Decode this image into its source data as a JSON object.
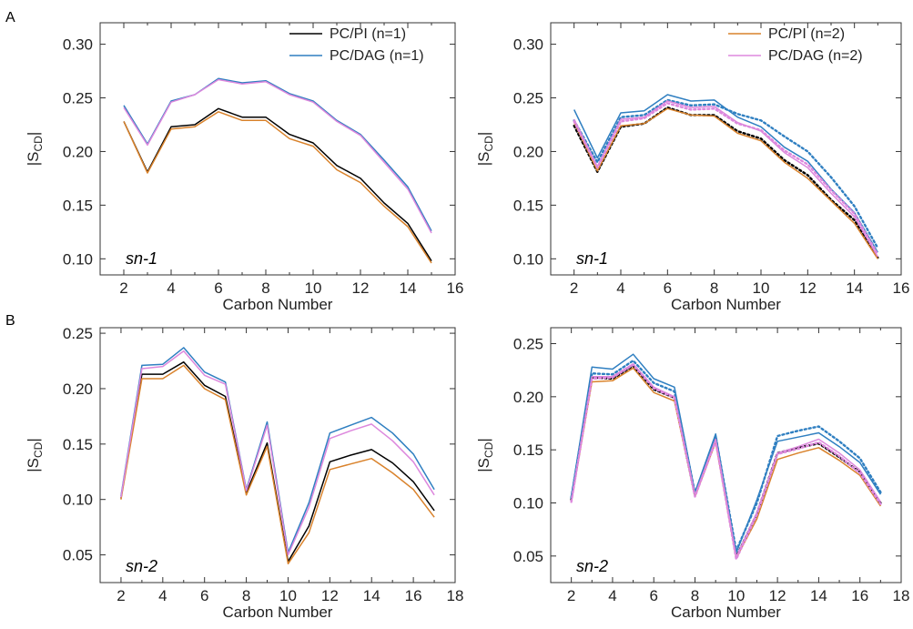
{
  "figure": {
    "panel_labels": [
      "A",
      "B"
    ]
  },
  "colors": {
    "pc_pi_n1": "#000000",
    "pc_dag_n1": "#2f7fc1",
    "pc_pi_n2": "#d9822b",
    "pc_dag_n2": "#dd88dd"
  },
  "chart_data": [
    {
      "type": "line",
      "panel": "A",
      "annotation": "sn-1",
      "xlabel": "Carbon Number",
      "ylabel": "|S",
      "ylabel_sub": "CD",
      "ylabel_end": "|",
      "xlim": [
        1,
        16
      ],
      "ylim": [
        0.085,
        0.32
      ],
      "xticks": [
        2,
        4,
        6,
        8,
        10,
        12,
        14,
        16
      ],
      "yticks": [
        "0.10",
        "0.15",
        "0.20",
        "0.25",
        "0.30"
      ],
      "x": [
        2,
        3,
        4,
        5,
        6,
        7,
        8,
        9,
        10,
        11,
        12,
        13,
        14,
        15
      ],
      "legend_position": "top-right",
      "series": [
        {
          "name": "PC/PI (n=1)",
          "color_key": "pc_pi_n1",
          "dotted": false,
          "values": [
            0.228,
            0.181,
            0.223,
            0.225,
            0.24,
            0.232,
            0.232,
            0.216,
            0.208,
            0.187,
            0.175,
            0.152,
            0.133,
            0.098
          ]
        },
        {
          "name": "PC/DAG (n=1)",
          "color_key": "pc_dag_n1",
          "dotted": false,
          "values": [
            0.243,
            0.207,
            0.247,
            0.253,
            0.268,
            0.264,
            0.266,
            0.254,
            0.247,
            0.229,
            0.216,
            0.192,
            0.167,
            0.126
          ]
        },
        {
          "name": "",
          "color_key": "pc_pi_n2",
          "dotted": false,
          "values": [
            0.228,
            0.18,
            0.221,
            0.223,
            0.237,
            0.229,
            0.229,
            0.212,
            0.205,
            0.183,
            0.171,
            0.149,
            0.13,
            0.096
          ]
        },
        {
          "name": "",
          "color_key": "pc_dag_n2",
          "dotted": false,
          "values": [
            0.241,
            0.206,
            0.246,
            0.253,
            0.267,
            0.263,
            0.265,
            0.253,
            0.246,
            0.228,
            0.215,
            0.19,
            0.165,
            0.124
          ]
        }
      ]
    },
    {
      "type": "line",
      "panel": "A-right",
      "annotation": "sn-1",
      "xlabel": "Carbon Number",
      "ylabel": "|S",
      "ylabel_sub": "CD",
      "ylabel_end": "|",
      "xlim": [
        1,
        16
      ],
      "ylim": [
        0.085,
        0.32
      ],
      "xticks": [
        2,
        4,
        6,
        8,
        10,
        12,
        14,
        16
      ],
      "yticks": [
        "0.10",
        "0.15",
        "0.20",
        "0.25",
        "0.30"
      ],
      "x": [
        2,
        3,
        4,
        5,
        6,
        7,
        8,
        9,
        10,
        11,
        12,
        13,
        14,
        15
      ],
      "legend_position": "top-right",
      "series": [
        {
          "name": "",
          "color_key": "pc_pi_n1",
          "dotted": true,
          "values": [
            0.224,
            0.181,
            0.223,
            0.226,
            0.241,
            0.234,
            0.234,
            0.219,
            0.212,
            0.192,
            0.178,
            0.155,
            0.136,
            0.101
          ]
        },
        {
          "name": "",
          "color_key": "pc_dag_n1",
          "dotted": true,
          "values": [
            0.229,
            0.19,
            0.232,
            0.234,
            0.248,
            0.243,
            0.244,
            0.235,
            0.229,
            0.214,
            0.2,
            0.176,
            0.149,
            0.11
          ]
        },
        {
          "name": "",
          "color_key": "pc_dag_n1",
          "dotted": false,
          "values": [
            0.239,
            0.194,
            0.236,
            0.238,
            0.253,
            0.247,
            0.248,
            0.232,
            0.223,
            0.204,
            0.191,
            0.165,
            0.143,
            0.106
          ]
        },
        {
          "name": "PC/PI (n=2)",
          "color_key": "pc_pi_n2",
          "dotted": false,
          "values": [
            0.227,
            0.182,
            0.224,
            0.226,
            0.24,
            0.234,
            0.233,
            0.217,
            0.21,
            0.19,
            0.175,
            0.154,
            0.133,
            0.1
          ]
        },
        {
          "name": "PC/DAG (n=2)",
          "color_key": "pc_dag_n2",
          "dotted": false,
          "values": [
            0.23,
            0.186,
            0.23,
            0.232,
            0.247,
            0.241,
            0.242,
            0.227,
            0.219,
            0.199,
            0.185,
            0.161,
            0.139,
            0.102
          ]
        },
        {
          "name": "",
          "color_key": "pc_dag_n2",
          "dotted": true,
          "values": [
            0.228,
            0.185,
            0.228,
            0.231,
            0.245,
            0.239,
            0.24,
            0.226,
            0.22,
            0.201,
            0.188,
            0.164,
            0.142,
            0.104
          ]
        }
      ]
    },
    {
      "type": "line",
      "panel": "B",
      "annotation": "sn-2",
      "xlabel": "Carbon Number",
      "ylabel": "|S",
      "ylabel_sub": "CD",
      "ylabel_end": "|",
      "xlim": [
        1,
        18
      ],
      "ylim": [
        0.025,
        0.255
      ],
      "xticks": [
        2,
        4,
        6,
        8,
        10,
        12,
        14,
        16,
        18
      ],
      "yticks": [
        "0.05",
        "0.10",
        "0.15",
        "0.20",
        "0.25"
      ],
      "x": [
        2,
        3,
        4,
        5,
        6,
        7,
        8,
        9,
        10,
        11,
        12,
        13,
        14,
        15,
        16,
        17
      ],
      "legend_position": "none",
      "series": [
        {
          "name": "",
          "color_key": "pc_pi_n1",
          "dotted": false,
          "values": [
            0.101,
            0.213,
            0.213,
            0.224,
            0.203,
            0.193,
            0.106,
            0.151,
            0.044,
            0.076,
            0.134,
            0.14,
            0.145,
            0.133,
            0.116,
            0.09
          ]
        },
        {
          "name": "",
          "color_key": "pc_pi_n2",
          "dotted": false,
          "values": [
            0.1,
            0.209,
            0.209,
            0.221,
            0.2,
            0.19,
            0.104,
            0.148,
            0.042,
            0.07,
            0.127,
            0.132,
            0.137,
            0.124,
            0.109,
            0.084
          ]
        },
        {
          "name": "",
          "color_key": "pc_dag_n1",
          "dotted": false,
          "values": [
            0.103,
            0.221,
            0.222,
            0.237,
            0.215,
            0.206,
            0.109,
            0.17,
            0.052,
            0.097,
            0.16,
            0.167,
            0.174,
            0.16,
            0.141,
            0.109
          ]
        },
        {
          "name": "",
          "color_key": "pc_dag_n2",
          "dotted": false,
          "values": [
            0.102,
            0.218,
            0.22,
            0.234,
            0.212,
            0.204,
            0.108,
            0.167,
            0.05,
            0.093,
            0.155,
            0.162,
            0.168,
            0.153,
            0.134,
            0.104
          ]
        }
      ]
    },
    {
      "type": "line",
      "panel": "B-right",
      "annotation": "sn-2",
      "xlabel": "Carbon Number",
      "ylabel": "|S",
      "ylabel_sub": "CD",
      "ylabel_end": "|",
      "xlim": [
        1,
        18
      ],
      "ylim": [
        0.025,
        0.265
      ],
      "xticks": [
        2,
        4,
        6,
        8,
        10,
        12,
        14,
        16,
        18
      ],
      "yticks": [
        "0.05",
        "0.10",
        "0.15",
        "0.20",
        "0.25"
      ],
      "x": [
        2,
        3,
        4,
        5,
        6,
        7,
        8,
        9,
        10,
        11,
        12,
        13,
        14,
        15,
        16,
        17
      ],
      "legend_position": "none",
      "series": [
        {
          "name": "",
          "color_key": "pc_pi_n1",
          "dotted": true,
          "values": [
            0.103,
            0.218,
            0.217,
            0.229,
            0.207,
            0.199,
            0.107,
            0.16,
            0.049,
            0.09,
            0.147,
            0.152,
            0.156,
            0.143,
            0.129,
            0.1
          ]
        },
        {
          "name": "",
          "color_key": "pc_pi_n2",
          "dotted": false,
          "values": [
            0.101,
            0.214,
            0.215,
            0.227,
            0.204,
            0.196,
            0.106,
            0.157,
            0.048,
            0.085,
            0.141,
            0.147,
            0.152,
            0.14,
            0.126,
            0.097
          ]
        },
        {
          "name": "",
          "color_key": "pc_dag_n1",
          "dotted": false,
          "values": [
            0.106,
            0.228,
            0.226,
            0.24,
            0.217,
            0.209,
            0.11,
            0.165,
            0.053,
            0.103,
            0.158,
            0.162,
            0.166,
            0.153,
            0.138,
            0.108
          ]
        },
        {
          "name": "",
          "color_key": "pc_dag_n1",
          "dotted": true,
          "values": [
            0.105,
            0.222,
            0.221,
            0.234,
            0.213,
            0.205,
            0.109,
            0.163,
            0.055,
            0.1,
            0.163,
            0.168,
            0.172,
            0.158,
            0.142,
            0.11
          ]
        },
        {
          "name": "",
          "color_key": "pc_dag_n2",
          "dotted": false,
          "values": [
            0.1,
            0.219,
            0.219,
            0.231,
            0.209,
            0.2,
            0.107,
            0.16,
            0.049,
            0.091,
            0.147,
            0.153,
            0.16,
            0.147,
            0.131,
            0.101
          ]
        },
        {
          "name": "",
          "color_key": "pc_dag_n2",
          "dotted": true,
          "values": [
            0.101,
            0.217,
            0.218,
            0.23,
            0.208,
            0.199,
            0.106,
            0.158,
            0.047,
            0.089,
            0.146,
            0.151,
            0.157,
            0.144,
            0.128,
            0.099
          ]
        }
      ]
    }
  ]
}
